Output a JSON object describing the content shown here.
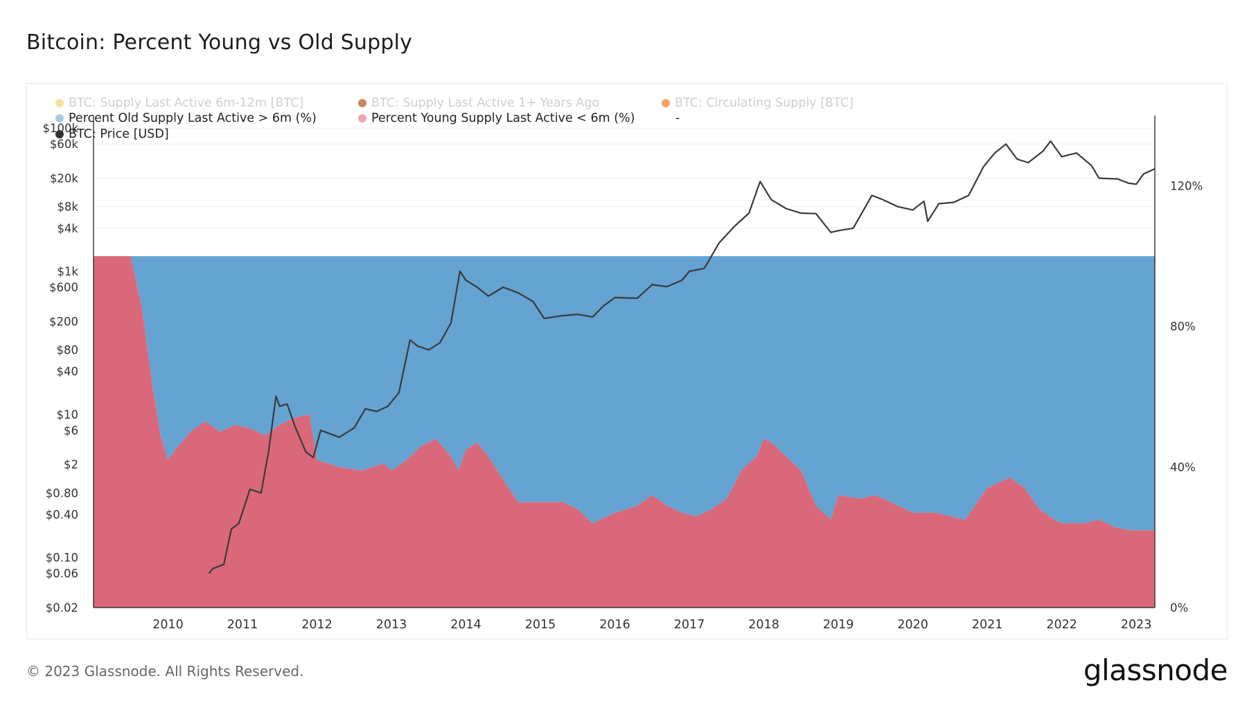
{
  "title": "Bitcoin: Percent Young vs Old Supply",
  "footer": "© 2023 Glassnode. All Rights Reserved.",
  "brand": "glassnode",
  "watermark": "glassnode",
  "colors": {
    "young": "#d9697a",
    "old": "#65a3d2",
    "price": "#3a3a3a",
    "grid": "#efefef",
    "axis": "#222222"
  },
  "legend": [
    {
      "label": "BTC: Supply Last Active 6m-12m [BTC]",
      "color": "#f7e29a",
      "active": false
    },
    {
      "label": "BTC: Supply Last Active 1+ Years Ago",
      "color": "#c9895a",
      "active": false
    },
    {
      "label": "BTC: Circulating Supply [BTC]",
      "color": "#f4a460",
      "active": false
    },
    {
      "label": "Percent Old Supply Last Active > 6m (%)",
      "color": "#a8cbe4",
      "active": true
    },
    {
      "label": "Percent Young Supply Last Active < 6m (%)",
      "color": "#f0a3ad",
      "active": true
    },
    {
      "label": "-",
      "color": "",
      "active": true
    },
    {
      "label": "BTC: Price [USD]",
      "color": "#333333",
      "active": true
    }
  ],
  "chart_data": {
    "type": "area",
    "x_ticks": [
      "2010",
      "2011",
      "2012",
      "2013",
      "2014",
      "2015",
      "2016",
      "2017",
      "2018",
      "2019",
      "2020",
      "2021",
      "2022",
      "2023"
    ],
    "x_range": [
      2009.0,
      2023.25
    ],
    "left_axis": {
      "label": "BTC: Price [USD]",
      "scale": "log",
      "range": [
        0.02,
        150000
      ],
      "ticks": [
        {
          "label": "$100k",
          "value": 100000
        },
        {
          "label": "$60k",
          "value": 60000
        },
        {
          "label": "$20k",
          "value": 20000
        },
        {
          "label": "$8k",
          "value": 8000
        },
        {
          "label": "$4k",
          "value": 4000
        },
        {
          "label": "$1k",
          "value": 1000
        },
        {
          "label": "$600",
          "value": 600
        },
        {
          "label": "$200",
          "value": 200
        },
        {
          "label": "$80",
          "value": 80
        },
        {
          "label": "$40",
          "value": 40
        },
        {
          "label": "$10",
          "value": 10
        },
        {
          "label": "$6",
          "value": 6
        },
        {
          "label": "$2",
          "value": 2
        },
        {
          "label": "$0.80",
          "value": 0.8
        },
        {
          "label": "$0.40",
          "value": 0.4
        },
        {
          "label": "$0.10",
          "value": 0.1
        },
        {
          "label": "$0.06",
          "value": 0.06
        },
        {
          "label": "$0.02",
          "value": 0.02
        }
      ]
    },
    "right_axis": {
      "range": [
        0,
        140
      ],
      "ticks": [
        {
          "label": "120%",
          "value": 120
        },
        {
          "label": "80%",
          "value": 80
        },
        {
          "label": "40%",
          "value": 40
        },
        {
          "label": "0%",
          "value": 0
        }
      ]
    },
    "series": [
      {
        "name": "Percent Young Supply Last Active < 6m (%)",
        "axis": "right",
        "points": [
          [
            2009.0,
            100
          ],
          [
            2009.5,
            100
          ],
          [
            2009.65,
            85
          ],
          [
            2009.8,
            62
          ],
          [
            2009.9,
            49
          ],
          [
            2010.0,
            42
          ],
          [
            2010.1,
            45
          ],
          [
            2010.3,
            50
          ],
          [
            2010.5,
            53
          ],
          [
            2010.7,
            50
          ],
          [
            2010.9,
            52
          ],
          [
            2011.1,
            51
          ],
          [
            2011.3,
            49
          ],
          [
            2011.5,
            52
          ],
          [
            2011.7,
            54
          ],
          [
            2011.9,
            55
          ],
          [
            2012.0,
            42
          ],
          [
            2012.3,
            40
          ],
          [
            2012.6,
            39
          ],
          [
            2012.9,
            41
          ],
          [
            2013.0,
            39
          ],
          [
            2013.2,
            42
          ],
          [
            2013.4,
            46
          ],
          [
            2013.6,
            48
          ],
          [
            2013.8,
            43
          ],
          [
            2013.9,
            39
          ],
          [
            2014.0,
            45
          ],
          [
            2014.15,
            47
          ],
          [
            2014.3,
            43
          ],
          [
            2014.45,
            38
          ],
          [
            2014.7,
            30
          ],
          [
            2015.0,
            30
          ],
          [
            2015.3,
            30
          ],
          [
            2015.5,
            28
          ],
          [
            2015.7,
            24
          ],
          [
            2015.8,
            25
          ],
          [
            2016.0,
            27
          ],
          [
            2016.3,
            29
          ],
          [
            2016.5,
            32
          ],
          [
            2016.7,
            29
          ],
          [
            2016.9,
            27
          ],
          [
            2017.1,
            26
          ],
          [
            2017.3,
            28
          ],
          [
            2017.5,
            31
          ],
          [
            2017.7,
            39
          ],
          [
            2017.9,
            43
          ],
          [
            2018.0,
            48
          ],
          [
            2018.1,
            47
          ],
          [
            2018.3,
            43
          ],
          [
            2018.5,
            39
          ],
          [
            2018.7,
            29
          ],
          [
            2018.9,
            25
          ],
          [
            2019.0,
            32
          ],
          [
            2019.3,
            31
          ],
          [
            2019.5,
            32
          ],
          [
            2019.7,
            30
          ],
          [
            2019.9,
            28
          ],
          [
            2020.0,
            27
          ],
          [
            2020.3,
            27
          ],
          [
            2020.5,
            26
          ],
          [
            2020.7,
            25
          ],
          [
            2021.0,
            34
          ],
          [
            2021.3,
            37
          ],
          [
            2021.5,
            34
          ],
          [
            2021.7,
            28
          ],
          [
            2021.9,
            25
          ],
          [
            2022.0,
            24
          ],
          [
            2022.3,
            24
          ],
          [
            2022.5,
            25
          ],
          [
            2022.7,
            23
          ],
          [
            2022.9,
            22
          ],
          [
            2023.25,
            22
          ]
        ]
      },
      {
        "name": "Percent Old Supply Last Active > 6m (%)",
        "axis": "right",
        "points": [
          [
            2009.0,
            0
          ],
          [
            2009.5,
            0
          ],
          [
            2009.65,
            15
          ],
          [
            2009.8,
            38
          ],
          [
            2009.9,
            51
          ],
          [
            2010.0,
            58
          ],
          [
            2010.1,
            55
          ],
          [
            2010.3,
            50
          ],
          [
            2010.5,
            47
          ],
          [
            2010.7,
            50
          ],
          [
            2010.9,
            48
          ],
          [
            2011.1,
            49
          ],
          [
            2011.3,
            51
          ],
          [
            2011.5,
            48
          ],
          [
            2011.7,
            46
          ],
          [
            2011.9,
            45
          ],
          [
            2012.0,
            58
          ],
          [
            2012.3,
            60
          ],
          [
            2012.6,
            61
          ],
          [
            2012.9,
            59
          ],
          [
            2013.0,
            61
          ],
          [
            2013.2,
            58
          ],
          [
            2013.4,
            54
          ],
          [
            2013.6,
            52
          ],
          [
            2013.8,
            57
          ],
          [
            2013.9,
            61
          ],
          [
            2014.0,
            55
          ],
          [
            2014.15,
            53
          ],
          [
            2014.3,
            57
          ],
          [
            2014.45,
            62
          ],
          [
            2014.7,
            70
          ],
          [
            2015.0,
            70
          ],
          [
            2015.3,
            70
          ],
          [
            2015.5,
            72
          ],
          [
            2015.7,
            76
          ],
          [
            2015.8,
            75
          ],
          [
            2016.0,
            73
          ],
          [
            2016.3,
            71
          ],
          [
            2016.5,
            68
          ],
          [
            2016.7,
            71
          ],
          [
            2016.9,
            73
          ],
          [
            2017.1,
            74
          ],
          [
            2017.3,
            72
          ],
          [
            2017.5,
            69
          ],
          [
            2017.7,
            61
          ],
          [
            2017.9,
            57
          ],
          [
            2018.0,
            52
          ],
          [
            2018.1,
            53
          ],
          [
            2018.3,
            57
          ],
          [
            2018.5,
            61
          ],
          [
            2018.7,
            71
          ],
          [
            2018.9,
            75
          ],
          [
            2019.0,
            68
          ],
          [
            2019.3,
            69
          ],
          [
            2019.5,
            68
          ],
          [
            2019.7,
            70
          ],
          [
            2019.9,
            72
          ],
          [
            2020.0,
            73
          ],
          [
            2020.3,
            73
          ],
          [
            2020.5,
            74
          ],
          [
            2020.7,
            75
          ],
          [
            2021.0,
            66
          ],
          [
            2021.3,
            63
          ],
          [
            2021.5,
            66
          ],
          [
            2021.7,
            72
          ],
          [
            2021.9,
            75
          ],
          [
            2022.0,
            76
          ],
          [
            2022.3,
            76
          ],
          [
            2022.5,
            75
          ],
          [
            2022.7,
            77
          ],
          [
            2022.9,
            78
          ],
          [
            2023.25,
            78
          ]
        ]
      },
      {
        "name": "BTC: Price [USD]",
        "axis": "left",
        "points": [
          [
            2010.55,
            0.06
          ],
          [
            2010.6,
            0.07
          ],
          [
            2010.75,
            0.08
          ],
          [
            2010.85,
            0.25
          ],
          [
            2010.95,
            0.3
          ],
          [
            2011.1,
            0.9
          ],
          [
            2011.25,
            0.8
          ],
          [
            2011.35,
            3
          ],
          [
            2011.45,
            18
          ],
          [
            2011.5,
            13
          ],
          [
            2011.6,
            14
          ],
          [
            2011.7,
            7
          ],
          [
            2011.85,
            3
          ],
          [
            2011.95,
            2.5
          ],
          [
            2012.05,
            6
          ],
          [
            2012.3,
            4.8
          ],
          [
            2012.5,
            6.5
          ],
          [
            2012.65,
            12
          ],
          [
            2012.8,
            11
          ],
          [
            2012.95,
            13
          ],
          [
            2013.1,
            20
          ],
          [
            2013.25,
            110
          ],
          [
            2013.35,
            90
          ],
          [
            2013.5,
            80
          ],
          [
            2013.65,
            100
          ],
          [
            2013.8,
            190
          ],
          [
            2013.92,
            1000
          ],
          [
            2014.0,
            750
          ],
          [
            2014.15,
            600
          ],
          [
            2014.3,
            450
          ],
          [
            2014.5,
            600
          ],
          [
            2014.7,
            500
          ],
          [
            2014.9,
            380
          ],
          [
            2015.05,
            220
          ],
          [
            2015.3,
            240
          ],
          [
            2015.5,
            250
          ],
          [
            2015.7,
            230
          ],
          [
            2015.85,
            330
          ],
          [
            2016.0,
            430
          ],
          [
            2016.3,
            420
          ],
          [
            2016.5,
            650
          ],
          [
            2016.7,
            610
          ],
          [
            2016.9,
            750
          ],
          [
            2017.0,
            1000
          ],
          [
            2017.2,
            1100
          ],
          [
            2017.4,
            2500
          ],
          [
            2017.6,
            4200
          ],
          [
            2017.8,
            6500
          ],
          [
            2017.95,
            18000
          ],
          [
            2018.1,
            10000
          ],
          [
            2018.3,
            7500
          ],
          [
            2018.5,
            6500
          ],
          [
            2018.7,
            6400
          ],
          [
            2018.9,
            3500
          ],
          [
            2019.0,
            3700
          ],
          [
            2019.2,
            4000
          ],
          [
            2019.45,
            11500
          ],
          [
            2019.6,
            10000
          ],
          [
            2019.8,
            8000
          ],
          [
            2020.0,
            7200
          ],
          [
            2020.15,
            9500
          ],
          [
            2020.2,
            5000
          ],
          [
            2020.35,
            8800
          ],
          [
            2020.55,
            9200
          ],
          [
            2020.75,
            11500
          ],
          [
            2020.95,
            29000
          ],
          [
            2021.1,
            45000
          ],
          [
            2021.25,
            60000
          ],
          [
            2021.4,
            37000
          ],
          [
            2021.55,
            33000
          ],
          [
            2021.75,
            48000
          ],
          [
            2021.85,
            66000
          ],
          [
            2022.0,
            40000
          ],
          [
            2022.2,
            45000
          ],
          [
            2022.4,
            30000
          ],
          [
            2022.5,
            20000
          ],
          [
            2022.75,
            19500
          ],
          [
            2022.9,
            17000
          ],
          [
            2023.0,
            16500
          ],
          [
            2023.1,
            23000
          ],
          [
            2023.25,
            27000
          ]
        ]
      }
    ]
  }
}
